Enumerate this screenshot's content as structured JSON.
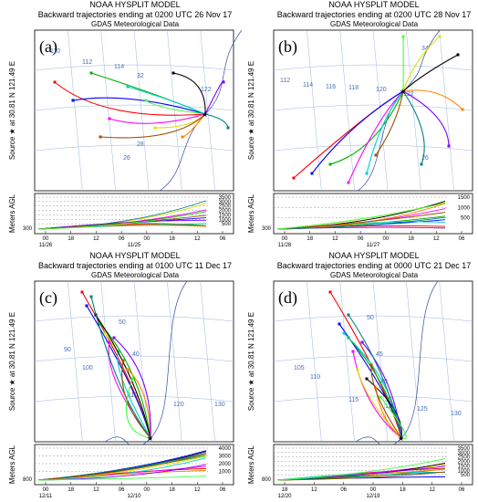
{
  "panels": [
    {
      "label": "(a)",
      "title": "NOAA HYSPLIT MODEL",
      "subtitle": "Backward trajectories ending at 0200 UTC 26 Nov 17",
      "source": "GDAS Meteorological Data",
      "side_label": "Source ★ at 30.81 N 121.49 E",
      "map_labels": [
        "110",
        "112",
        "114",
        "32",
        "28",
        "26",
        "122"
      ],
      "y_label": "Meters AGL",
      "height_ticks": [
        "3500",
        "3000",
        "2500",
        "2000",
        "1500",
        "1000",
        "500"
      ],
      "start_height": "300",
      "time_ticks": [
        "00",
        "18",
        "12",
        "06",
        "00",
        "18",
        "12",
        "06"
      ],
      "dates": [
        "11/26",
        "11/25"
      ]
    },
    {
      "label": "(b)",
      "title": "NOAA HYSPLIT MODEL",
      "subtitle": "Backward trajectories ending at 0200 UTC 28 Nov 17",
      "source": "GDAS Meteorological Data",
      "side_label": "Source ★ at 30.81 N 121.49 E",
      "map_labels": [
        "112",
        "114",
        "116",
        "118",
        "120",
        "122",
        "34",
        "26"
      ],
      "y_label": "Meters AGL",
      "height_ticks": [
        "1500",
        "1000",
        "500"
      ],
      "start_height": "300",
      "time_ticks": [
        "00",
        "18",
        "12",
        "06",
        "00",
        "18",
        "12",
        "06"
      ],
      "dates": [
        "11/28",
        "11/27"
      ]
    },
    {
      "label": "(c)",
      "title": "NOAA HYSPLIT MODEL",
      "subtitle": "Backward trajectories ending at 0100 UTC 11 Dec 17",
      "source": "GDAS Meteorological Data",
      "side_label": "Source ★ at 30.81 N 121.49 E",
      "map_labels": [
        "90",
        "100",
        "110",
        "120",
        "130",
        "50",
        "40"
      ],
      "y_label": "Meters AGL",
      "height_ticks": [
        "4000",
        "3000",
        "2000",
        "1000"
      ],
      "start_height": "800",
      "time_ticks": [
        "00",
        "18",
        "12",
        "06",
        "00",
        "18",
        "12",
        "06"
      ],
      "dates": [
        "12/11",
        "12/10"
      ]
    },
    {
      "label": "(d)",
      "title": "NOAA HYSPLIT MODEL",
      "subtitle": "Backward trajectories ending at 0000 UTC 21 Dec 17",
      "source": "GDAS Meteorological Data",
      "side_label": "Source ★ at 30.81 N 121.49 E",
      "map_labels": [
        "105",
        "110",
        "115",
        "120",
        "125",
        "130",
        "50",
        "45",
        "40",
        "35"
      ],
      "y_label": "Meters AGL",
      "height_ticks": [
        "3500",
        "3000",
        "2500",
        "2000",
        "1500",
        "1000",
        "500"
      ],
      "start_height": "800",
      "time_ticks": [
        "18",
        "12",
        "06",
        "00",
        "18",
        "12",
        "06"
      ],
      "dates": [
        "12/20",
        "12/19"
      ]
    }
  ]
}
